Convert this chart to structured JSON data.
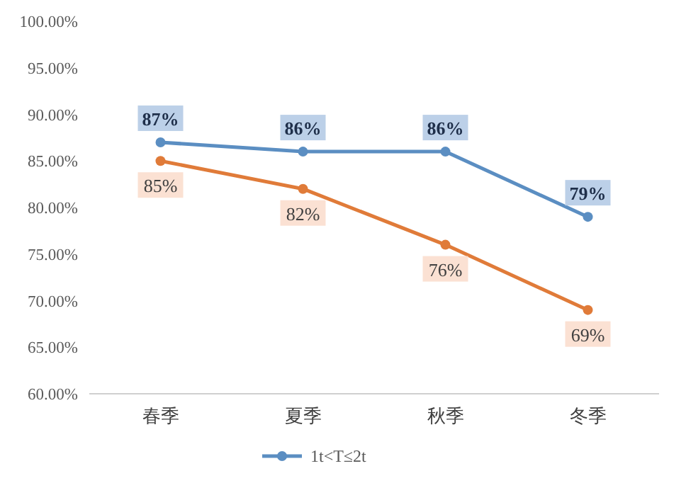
{
  "chart_data": {
    "type": "line",
    "categories": [
      "春季",
      "夏季",
      "秋季",
      "冬季"
    ],
    "series": [
      {
        "name": "1t<T≤2t",
        "color": "#5b8ec2",
        "values": [
          87,
          86,
          86,
          79
        ],
        "value_labels": [
          "87%",
          "86%",
          "86%",
          "79%"
        ]
      },
      {
        "color": "#e07b39",
        "values": [
          85,
          82,
          76,
          69
        ],
        "value_labels": [
          "85%",
          "82%",
          "76%",
          "69%"
        ]
      }
    ],
    "ylim": [
      60,
      100
    ],
    "yticks": [
      {
        "value": 60,
        "label": "60.00%"
      },
      {
        "value": 65,
        "label": "65.00%"
      },
      {
        "value": 70,
        "label": "70.00%"
      },
      {
        "value": 75,
        "label": "75.00%"
      },
      {
        "value": 80,
        "label": "80.00%"
      },
      {
        "value": 85,
        "label": "85.00%"
      },
      {
        "value": 90,
        "label": "90.00%"
      },
      {
        "value": 95,
        "label": "95.00%"
      },
      {
        "value": 100,
        "label": "100.00%"
      }
    ],
    "marker": "circle",
    "legend": "bottom"
  }
}
